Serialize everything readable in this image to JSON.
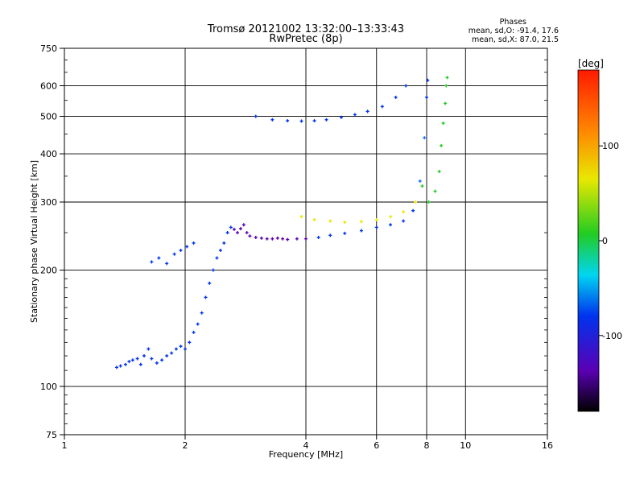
{
  "chart_data": {
    "type": "scatter",
    "title": "Tromsø 20121002 13:32:00–13:33:43",
    "subtitle": "RwPretec (8p)",
    "stats": {
      "heading": "Phases",
      "line_o": "mean, sd,O: -91.4, 17.6",
      "line_x": "mean, sd,X: 87.0, 21.5"
    },
    "xlabel": "Frequency [MHz]",
    "ylabel": "Stationary phase Virtual Height [km]",
    "x_scale": "log",
    "y_scale": "log",
    "xlim": [
      1,
      16
    ],
    "ylim": [
      75,
      750
    ],
    "x_ticks": [
      1,
      2,
      4,
      6,
      8,
      10,
      16
    ],
    "x_tick_labels": [
      "1",
      "2",
      "4",
      "6",
      "8",
      "10",
      "16"
    ],
    "y_ticks": [
      75,
      100,
      200,
      300,
      400,
      500,
      600,
      750
    ],
    "y_tick_labels": [
      "75",
      "100",
      "200",
      "300",
      "400",
      "500",
      "600",
      "750"
    ],
    "grid": true,
    "colorbar": {
      "label": "[deg]",
      "range": [
        -180,
        180
      ],
      "ticks": [
        100,
        0,
        -100
      ],
      "tick_labels": [
        "100",
        "0",
        "-100"
      ]
    },
    "colors": {
      "ink": "#000000",
      "violet": "#5a00b4",
      "blue": "#0033ee",
      "lightblue": "#1a70ff",
      "cyan": "#00d6f0",
      "green": "#22cc22",
      "yellow": "#e8e800",
      "orange": "#ff8800",
      "red": "#ff1a00"
    },
    "series": [
      {
        "values": [
          [
            1.35,
            112
          ],
          [
            1.38,
            113
          ],
          [
            1.42,
            114
          ],
          [
            1.45,
            116
          ],
          [
            1.48,
            117
          ],
          [
            1.52,
            118
          ],
          [
            1.55,
            114
          ],
          [
            1.58,
            120
          ],
          [
            1.62,
            125
          ],
          [
            1.65,
            118
          ],
          [
            1.7,
            115
          ],
          [
            1.75,
            117
          ],
          [
            1.8,
            120
          ],
          [
            1.85,
            122
          ],
          [
            1.9,
            125
          ],
          [
            1.95,
            127
          ],
          [
            2.0,
            125
          ],
          [
            2.05,
            130
          ],
          [
            2.1,
            138
          ],
          [
            2.15,
            145
          ],
          [
            2.2,
            155
          ],
          [
            2.25,
            170
          ],
          [
            2.3,
            185
          ],
          [
            2.35,
            200
          ],
          [
            2.4,
            215
          ],
          [
            2.45,
            225
          ],
          [
            2.5,
            235
          ],
          [
            2.55,
            250
          ],
          [
            2.6,
            258
          ],
          [
            2.65,
            255
          ],
          [
            2.7,
            250
          ],
          [
            2.75,
            256
          ],
          [
            2.8,
            262
          ],
          [
            2.85,
            250
          ],
          [
            2.9,
            245
          ],
          [
            3.0,
            243
          ],
          [
            3.1,
            242
          ],
          [
            3.2,
            241
          ],
          [
            3.3,
            241
          ],
          [
            3.4,
            242
          ],
          [
            3.5,
            241
          ],
          [
            3.6,
            240
          ],
          [
            3.8,
            241
          ],
          [
            4.0,
            241
          ],
          [
            4.3,
            243
          ],
          [
            4.6,
            246
          ],
          [
            5.0,
            249
          ],
          [
            5.5,
            253
          ],
          [
            6.0,
            258
          ],
          [
            6.5,
            262
          ],
          [
            7.0,
            268
          ],
          [
            7.4,
            285
          ],
          [
            7.7,
            340
          ],
          [
            7.9,
            440
          ],
          [
            8.0,
            560
          ],
          [
            8.05,
            620
          ],
          [
            1.65,
            210
          ],
          [
            1.72,
            215
          ],
          [
            1.8,
            208
          ],
          [
            1.88,
            220
          ],
          [
            1.95,
            225
          ],
          [
            2.02,
            230
          ],
          [
            2.1,
            235
          ],
          [
            3.0,
            500
          ],
          [
            3.3,
            490
          ],
          [
            3.6,
            487
          ],
          [
            3.9,
            486
          ],
          [
            4.2,
            487
          ],
          [
            4.5,
            490
          ],
          [
            4.9,
            497
          ],
          [
            5.3,
            505
          ],
          [
            5.7,
            515
          ],
          [
            6.2,
            530
          ],
          [
            6.7,
            560
          ],
          [
            7.1,
            600
          ]
        ]
      },
      {
        "values": [
          [
            3.9,
            275
          ],
          [
            4.2,
            270
          ],
          [
            4.6,
            268
          ],
          [
            5.0,
            266
          ],
          [
            5.5,
            267
          ],
          [
            6.0,
            270
          ],
          [
            6.5,
            275
          ],
          [
            7.0,
            283
          ],
          [
            7.5,
            300
          ],
          [
            7.8,
            330
          ],
          [
            8.1,
            300
          ],
          [
            8.4,
            320
          ],
          [
            8.6,
            360
          ],
          [
            8.7,
            420
          ],
          [
            8.8,
            480
          ],
          [
            8.9,
            540
          ],
          [
            8.95,
            600
          ],
          [
            9.0,
            630
          ]
        ]
      }
    ]
  }
}
